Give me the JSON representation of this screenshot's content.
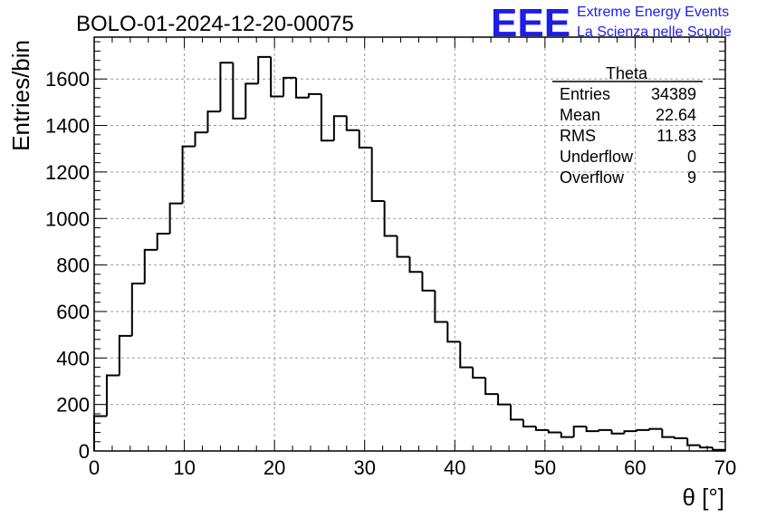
{
  "logo": {
    "letters": "EEE",
    "line1": "Extreme Energy Events",
    "line2": "La Scienza nelle Scuole",
    "color": "#1d1de6"
  },
  "stats": {
    "title": "Theta",
    "rows": [
      {
        "label": "Entries",
        "value": "34389"
      },
      {
        "label": "Mean",
        "value": "22.64"
      },
      {
        "label": "RMS",
        "value": "11.83"
      },
      {
        "label": "Underflow",
        "value": "0"
      },
      {
        "label": "Overflow",
        "value": "9"
      }
    ]
  },
  "chart_data": {
    "type": "bar",
    "title": "BOLO-01-2024-12-20-00075",
    "xlabel": "θ [°]",
    "ylabel": "Entries/bin",
    "xlim": [
      0,
      70
    ],
    "ylim": [
      0,
      1780
    ],
    "grid": true,
    "bin_width": 1.4,
    "x_ticks": [
      0,
      10,
      20,
      30,
      40,
      50,
      60,
      70
    ],
    "y_ticks": [
      0,
      200,
      400,
      600,
      800,
      1000,
      1200,
      1400,
      1600
    ],
    "bin_start": 0,
    "values": [
      150,
      325,
      495,
      720,
      865,
      935,
      1065,
      1310,
      1370,
      1460,
      1670,
      1430,
      1580,
      1695,
      1525,
      1605,
      1520,
      1535,
      1335,
      1440,
      1380,
      1305,
      1075,
      925,
      835,
      770,
      690,
      555,
      470,
      360,
      315,
      245,
      200,
      135,
      105,
      90,
      80,
      60,
      105,
      85,
      90,
      75,
      85,
      90,
      95,
      60,
      55,
      25,
      15,
      5
    ]
  }
}
